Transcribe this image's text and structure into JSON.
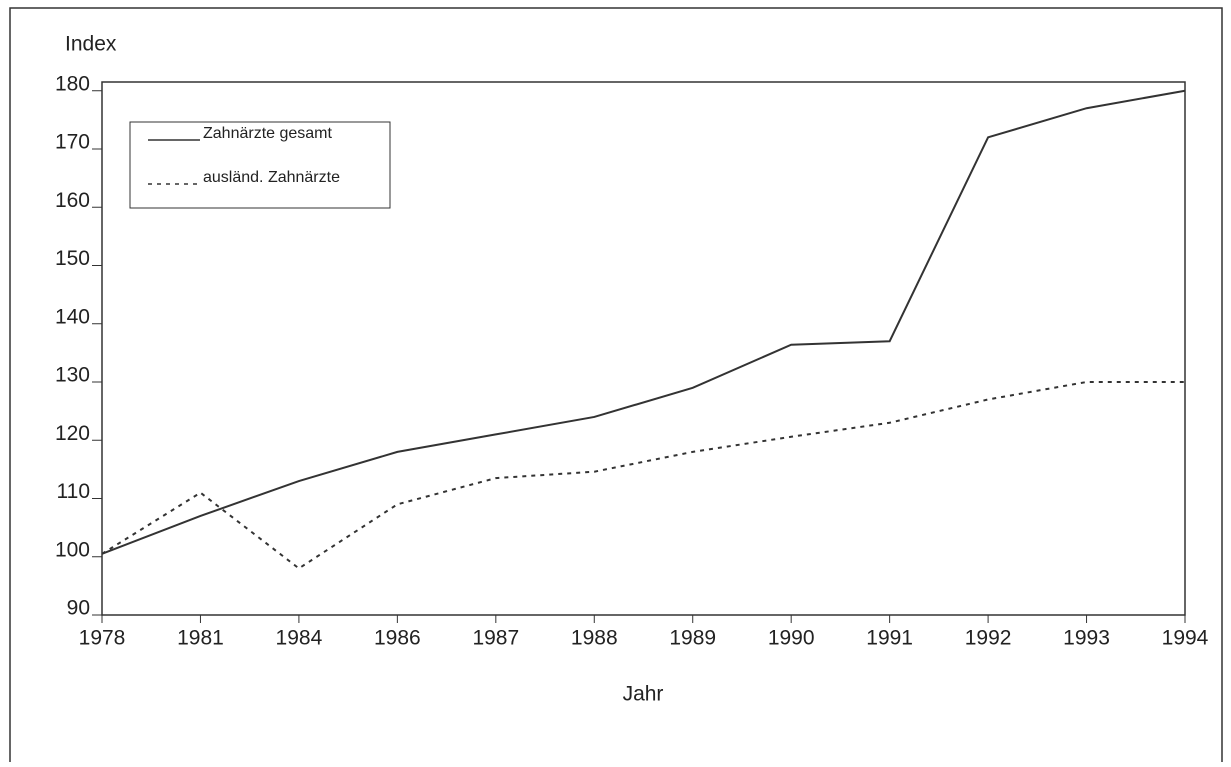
{
  "chart_data": {
    "type": "line",
    "y_axis_label": "Index",
    "x_axis_label": "Jahr",
    "categories": [
      "1978",
      "1981",
      "1984",
      "1986",
      "1987",
      "1988",
      "1989",
      "1990",
      "1991",
      "1992",
      "1993",
      "1994"
    ],
    "series": [
      {
        "name": "Zahnärzte gesamt",
        "color": "#333333",
        "dash": "solid",
        "values": [
          100.5,
          107,
          113,
          118,
          121,
          124,
          129,
          136.4,
          137,
          172,
          177,
          180
        ]
      },
      {
        "name": "ausländ. Zahnärzte",
        "color": "#333333",
        "dash": "dotted",
        "values": [
          100.5,
          111,
          98,
          109,
          113.5,
          114.6,
          118,
          120.6,
          123,
          127,
          130,
          130
        ]
      }
    ],
    "ylim": [
      90,
      181.5
    ],
    "yticks": [
      90,
      100,
      110,
      120,
      130,
      140,
      150,
      160,
      170,
      180
    ],
    "legend": "top-left"
  }
}
